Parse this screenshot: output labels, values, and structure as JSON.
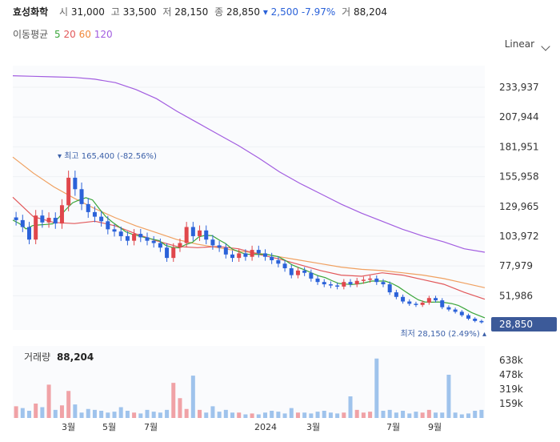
{
  "header": {
    "name": "효성화학",
    "open_label": "시",
    "open": "31,000",
    "high_label": "고",
    "high": "33,500",
    "low_label": "저",
    "low": "28,150",
    "close_label": "종",
    "close": "28,850",
    "change": "▾ 2,500",
    "change_pct": "-7.97%",
    "volume_label": "거",
    "volume": "88,204"
  },
  "ma_legend": {
    "label": "이동평균",
    "items": [
      {
        "text": "5",
        "color": "#3aa63a"
      },
      {
        "text": "20",
        "color": "#e2585a"
      },
      {
        "text": "60",
        "color": "#f0883a"
      },
      {
        "text": "120",
        "color": "#a25de0"
      }
    ]
  },
  "scale_label": "Linear",
  "price_axis": [
    "233,937",
    "207,944",
    "181,951",
    "155,958",
    "129,965",
    "103,972",
    "77,979",
    "51,986"
  ],
  "current_price_tag": "28,850",
  "high_marker": "▾ 최고 165,400 (-82.56%)",
  "low_marker": "최저 28,150 (2.49%) ▴",
  "x_labels": [
    "3월",
    "5월",
    "7월",
    "2024",
    "3월",
    "7월",
    "9월"
  ],
  "volume": {
    "title": "거래량",
    "value": "88,204",
    "axis": [
      "638k",
      "478k",
      "319k",
      "159k"
    ]
  },
  "colors": {
    "up": "#e0474c",
    "down": "#2b62d9",
    "tag_bg": "#3c5a99",
    "vol_up": "#f0a2a6",
    "vol_down": "#9fc3ec"
  },
  "chart_data": {
    "type": "candlestick",
    "y_range": [
      25000,
      250000
    ],
    "volume_range": [
      0,
      800000
    ],
    "x_range": [
      "2022-12",
      "2024-11"
    ],
    "high": 165400,
    "low": 28150,
    "last_close": 28850,
    "ma_periods": [
      5,
      20,
      60,
      120
    ],
    "ma120": [
      244000,
      243500,
      243000,
      242500,
      241000,
      238000,
      232000,
      224000,
      213000,
      203000,
      193000,
      183000,
      172000,
      160000,
      150000,
      141000,
      132000,
      124000,
      117000,
      110000,
      104000,
      99000,
      93000,
      90000
    ],
    "ma60": [
      173000,
      159000,
      147000,
      137000,
      128000,
      120000,
      113000,
      107000,
      101000,
      97000,
      94000,
      91000,
      89000,
      86000,
      83000,
      80000,
      77000,
      75000,
      74000,
      72000,
      70000,
      67000,
      63000,
      59000
    ],
    "ma20": [
      138000,
      121000,
      116000,
      115000,
      117000,
      113000,
      106000,
      100000,
      95000,
      94000,
      95000,
      93000,
      88000,
      84000,
      79000,
      74000,
      70000,
      69000,
      72000,
      70000,
      66000,
      62000,
      55000,
      49000
    ],
    "closes": [
      118000,
      112000,
      101000,
      122000,
      116000,
      120000,
      115000,
      131000,
      155000,
      145000,
      132000,
      125000,
      121000,
      117000,
      110000,
      108000,
      104000,
      100000,
      106000,
      103000,
      100000,
      98000,
      94000,
      85000,
      94000,
      98000,
      112000,
      104000,
      109000,
      101000,
      96000,
      94000,
      88000,
      85000,
      89000,
      86000,
      92000,
      89000,
      86000,
      83000,
      80000,
      76000,
      70000,
      74000,
      72000,
      67000,
      64000,
      62000,
      61000,
      60000,
      64000,
      62000,
      65000,
      66000,
      67000,
      64000,
      62000,
      55000,
      51000,
      47000,
      45000,
      44000,
      46000,
      50000,
      48000,
      42000,
      40000,
      38000,
      35000,
      32000,
      30000,
      28850
    ],
    "volumes": [
      130000,
      110000,
      80000,
      160000,
      120000,
      370000,
      90000,
      140000,
      300000,
      150000,
      60000,
      100000,
      90000,
      80000,
      60000,
      70000,
      120000,
      80000,
      60000,
      50000,
      90000,
      70000,
      60000,
      90000,
      390000,
      220000,
      100000,
      470000,
      90000,
      60000,
      130000,
      70000,
      90000,
      60000,
      60000,
      40000,
      50000,
      40000,
      60000,
      80000,
      70000,
      50000,
      110000,
      60000,
      60000,
      50000,
      70000,
      80000,
      60000,
      50000,
      60000,
      240000,
      90000,
      60000,
      70000,
      660000,
      80000,
      90000,
      60000,
      80000,
      50000,
      70000,
      60000,
      90000,
      60000,
      60000,
      480000,
      60000,
      40000,
      50000,
      80000,
      90000
    ]
  }
}
